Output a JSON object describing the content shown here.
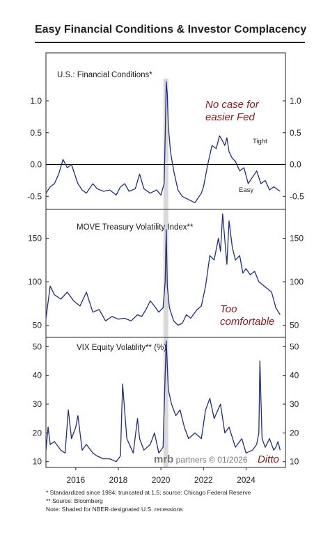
{
  "title": "Easy Financial Conditions & Investor Complacency",
  "watermark_brand": "mrb",
  "watermark_rest": " partners © 01/2026",
  "footnotes": [
    "*  Standardized since 1984; truncated at 1.5; source: Chicago Federal Reserve",
    "** Source: Bloomberg",
    "Note: Shaded for NBER-designated U.S. recessions"
  ],
  "colors": {
    "series": "#1f2d7a",
    "annotation": "#8b1a1a",
    "recession": "#d9d9d9"
  },
  "chart_data": [
    {
      "type": "line",
      "title": "U.S.: Financial Conditions*",
      "ylim": [
        -0.65,
        1.35
      ],
      "yticks": [
        1.0,
        0.5,
        0.0,
        -0.5
      ],
      "ytick_labels": [
        "1.0",
        "0.5",
        "0.0",
        "-0.5"
      ],
      "zero_line": true,
      "annotations": [
        "No case for",
        "easier Fed"
      ],
      "tight_label": "Tight",
      "easy_label": "Easy",
      "series": [
        {
          "x": [
            2014.6,
            2014.8,
            2015.0,
            2015.2,
            2015.4,
            2015.6,
            2015.8,
            2016.0,
            2016.1,
            2016.3,
            2016.5,
            2016.8,
            2017.0,
            2017.3,
            2017.6,
            2017.9,
            2018.1,
            2018.3,
            2018.5,
            2018.8,
            2019.0,
            2019.2,
            2019.5,
            2019.8,
            2020.0,
            2020.15,
            2020.2,
            2020.25,
            2020.3,
            2020.35,
            2020.45,
            2020.6,
            2020.8,
            2021.0,
            2021.3,
            2021.6,
            2021.9,
            2022.0,
            2022.2,
            2022.4,
            2022.6,
            2022.75,
            2022.85,
            2023.0,
            2023.1,
            2023.2,
            2023.35,
            2023.5,
            2023.7,
            2023.9,
            2024.1,
            2024.3,
            2024.5,
            2024.7,
            2024.9,
            2025.1,
            2025.3,
            2025.6
          ],
          "y": [
            -0.45,
            -0.35,
            -0.3,
            -0.15,
            0.08,
            -0.05,
            0.0,
            -0.2,
            -0.3,
            -0.4,
            -0.45,
            -0.3,
            -0.38,
            -0.42,
            -0.4,
            -0.48,
            -0.35,
            -0.3,
            -0.42,
            -0.38,
            -0.15,
            -0.38,
            -0.45,
            -0.4,
            -0.48,
            -0.3,
            0.4,
            1.3,
            1.1,
            0.6,
            0.2,
            -0.1,
            -0.4,
            -0.5,
            -0.55,
            -0.6,
            -0.45,
            -0.35,
            0.0,
            0.3,
            0.25,
            0.45,
            0.4,
            0.3,
            0.42,
            0.2,
            0.1,
            0.05,
            -0.1,
            -0.05,
            -0.3,
            -0.2,
            -0.1,
            -0.3,
            -0.25,
            -0.4,
            -0.35,
            -0.42
          ]
        }
      ]
    },
    {
      "type": "line",
      "title": "MOVE Treasury Volatility Index**",
      "ylim": [
        40,
        180
      ],
      "yticks": [
        150,
        100,
        50
      ],
      "ytick_labels": [
        "150",
        "100",
        "50"
      ],
      "annotations": [
        "Too",
        "comfortable"
      ],
      "series": [
        {
          "x": [
            2014.6,
            2014.8,
            2015.0,
            2015.3,
            2015.6,
            2015.9,
            2016.2,
            2016.5,
            2016.8,
            2017.1,
            2017.4,
            2017.7,
            2018.0,
            2018.3,
            2018.6,
            2018.9,
            2019.1,
            2019.3,
            2019.5,
            2019.7,
            2019.9,
            2020.1,
            2020.2,
            2020.25,
            2020.3,
            2020.4,
            2020.6,
            2020.8,
            2021.0,
            2021.2,
            2021.4,
            2021.7,
            2021.9,
            2022.1,
            2022.3,
            2022.5,
            2022.7,
            2022.8,
            2022.9,
            2023.1,
            2023.2,
            2023.35,
            2023.5,
            2023.7,
            2023.85,
            2024.0,
            2024.2,
            2024.4,
            2024.6,
            2024.8,
            2025.0,
            2025.2,
            2025.4,
            2025.6
          ],
          "y": [
            58,
            95,
            85,
            80,
            88,
            78,
            72,
            88,
            65,
            68,
            55,
            60,
            57,
            58,
            55,
            62,
            60,
            68,
            78,
            72,
            65,
            70,
            100,
            160,
            95,
            70,
            55,
            50,
            52,
            62,
            58,
            68,
            72,
            95,
            130,
            125,
            150,
            135,
            178,
            120,
            170,
            140,
            125,
            130,
            110,
            115,
            108,
            112,
            100,
            96,
            92,
            88,
            70,
            62
          ]
        }
      ]
    },
    {
      "type": "line",
      "title": "VIX Equity Volatility** (%)",
      "ylim": [
        8,
        52
      ],
      "yticks": [
        50,
        40,
        30,
        20,
        10
      ],
      "ytick_labels": [
        "50",
        "40",
        "30",
        "20",
        "10"
      ],
      "annotations": [
        "Ditto"
      ],
      "series": [
        {
          "x": [
            2014.6,
            2014.7,
            2014.8,
            2015.0,
            2015.3,
            2015.5,
            2015.65,
            2015.8,
            2016.0,
            2016.1,
            2016.3,
            2016.5,
            2016.8,
            2017.0,
            2017.3,
            2017.6,
            2017.9,
            2018.1,
            2018.2,
            2018.4,
            2018.7,
            2018.9,
            2019.0,
            2019.2,
            2019.5,
            2019.7,
            2019.9,
            2020.1,
            2020.2,
            2020.25,
            2020.35,
            2020.5,
            2020.7,
            2020.9,
            2021.1,
            2021.3,
            2021.6,
            2021.9,
            2022.1,
            2022.3,
            2022.5,
            2022.8,
            2023.0,
            2023.2,
            2023.5,
            2023.8,
            2024.0,
            2024.3,
            2024.5,
            2024.6,
            2024.65,
            2024.75,
            2024.9,
            2025.1,
            2025.3,
            2025.4,
            2025.5,
            2025.6
          ],
          "y": [
            14,
            22,
            16,
            17,
            14,
            13,
            28,
            18,
            22,
            26,
            14,
            16,
            13,
            12,
            11,
            11,
            10,
            12,
            37,
            18,
            13,
            25,
            18,
            14,
            16,
            20,
            13,
            15,
            40,
            82,
            35,
            30,
            26,
            28,
            22,
            18,
            20,
            18,
            28,
            32,
            25,
            30,
            20,
            22,
            15,
            18,
            13,
            14,
            16,
            20,
            45,
            18,
            15,
            18,
            14,
            15,
            17,
            14
          ]
        }
      ]
    }
  ],
  "x_axis": {
    "xlim": [
      2014.6,
      2025.85
    ],
    "ticks": [
      2016,
      2018,
      2020,
      2022,
      2024
    ],
    "tick_labels": [
      "2016",
      "2018",
      "2020",
      "2022",
      "2024"
    ],
    "recession": [
      2020.12,
      2020.35
    ]
  }
}
